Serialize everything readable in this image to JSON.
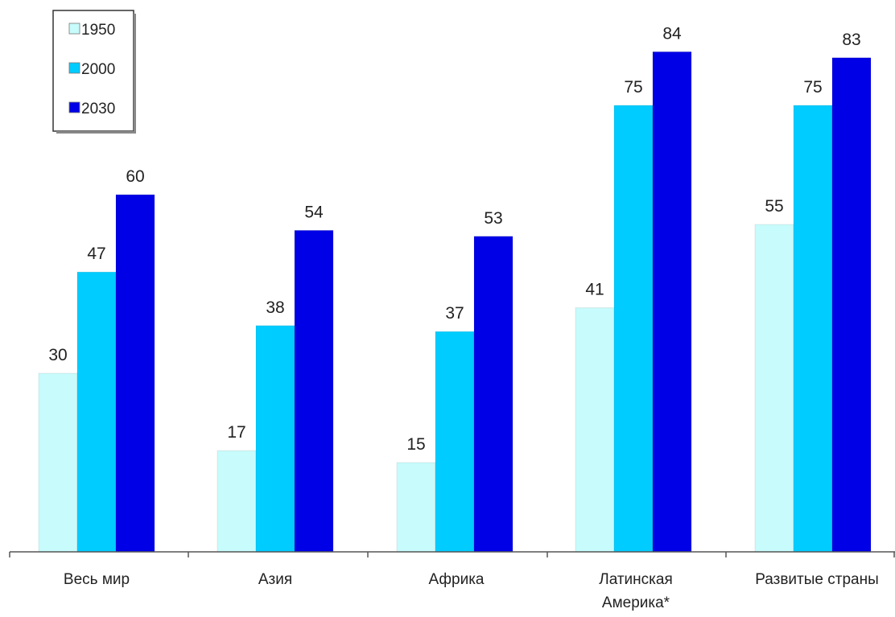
{
  "chart_data": {
    "type": "bar",
    "categories": [
      "Весь мир",
      "Азия",
      "Африка",
      "Латинская Америка*",
      "Развитые страны"
    ],
    "category_lines": [
      [
        "Весь мир"
      ],
      [
        "Азия"
      ],
      [
        "Африка"
      ],
      [
        "Латинская",
        "Америка*"
      ],
      [
        "Развитые страны"
      ]
    ],
    "series": [
      {
        "name": "1950",
        "values": [
          30,
          17,
          15,
          41,
          55
        ],
        "color": "#c8fbfb"
      },
      {
        "name": "2000",
        "values": [
          47,
          38,
          37,
          75,
          75
        ],
        "color": "#00ccff"
      },
      {
        "name": "2030",
        "values": [
          60,
          54,
          53,
          84,
          83
        ],
        "color": "#0000e6"
      }
    ],
    "ylim": [
      0,
      90
    ],
    "title": "",
    "xlabel": "",
    "ylabel": "",
    "grid": false,
    "legend_position": "top-left",
    "data_labels": true
  }
}
